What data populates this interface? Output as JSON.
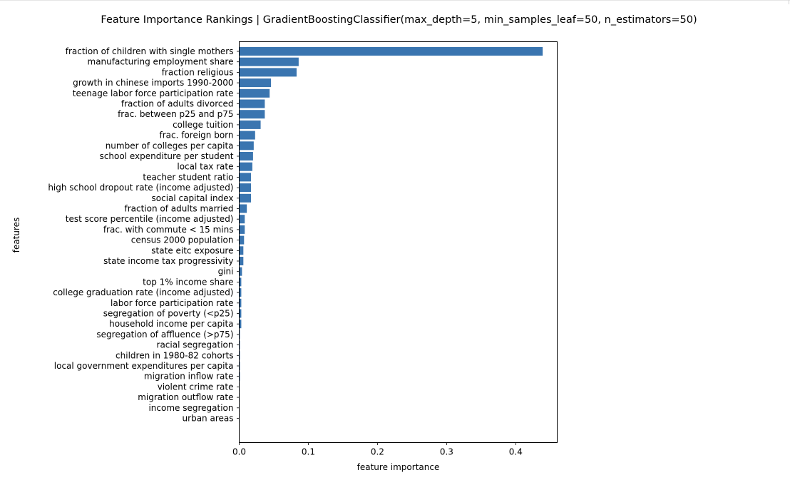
{
  "chart_data": {
    "type": "bar",
    "orientation": "horizontal",
    "title": "Feature Importance Rankings | GradientBoostingClassifier(max_depth=5, min_samples_leaf=50, n_estimators=50)",
    "xlabel": "feature importance",
    "ylabel": "features",
    "xlim": [
      0,
      0.46
    ],
    "xticks": [
      0.0,
      0.1,
      0.2,
      0.3,
      0.4
    ],
    "xtick_labels": [
      "0.0",
      "0.1",
      "0.2",
      "0.3",
      "0.4"
    ],
    "grid": false,
    "bar_color": "#3a75b0",
    "categories": [
      "fraction of children with single mothers",
      "manufacturing employment share",
      "fraction religious",
      "growth in chinese imports 1990-2000",
      "teenage labor force participation rate",
      "fraction of adults divorced",
      "frac. between p25 and p75",
      "college tuition",
      "frac. foreign born",
      "number of colleges per capita",
      "school expenditure per student",
      "local tax rate",
      "teacher student ratio",
      "high school dropout rate (income adjusted)",
      "social capital index",
      "fraction of adults married",
      "test score percentile (income adjusted)",
      "frac. with commute < 15 mins",
      "census 2000 population",
      "state eitc exposure",
      "state income tax progressivity",
      "gini",
      "top 1% income share",
      "college graduation rate (income adjusted)",
      "labor force participation rate",
      "segregation of poverty (<p25)",
      "household income per capita",
      "segregation of affluence (>p75)",
      "racial segregation",
      "children in 1980-82 cohorts",
      "local government expenditures per capita",
      "migration inflow rate",
      "violent crime rate",
      "migration outflow rate",
      "income segregation",
      "urban areas"
    ],
    "values": [
      0.439,
      0.086,
      0.083,
      0.046,
      0.044,
      0.037,
      0.037,
      0.031,
      0.023,
      0.021,
      0.02,
      0.019,
      0.017,
      0.017,
      0.017,
      0.011,
      0.008,
      0.008,
      0.007,
      0.006,
      0.006,
      0.004,
      0.003,
      0.003,
      0.003,
      0.003,
      0.003,
      0.001,
      0.001,
      0.001,
      0.001,
      0.001,
      0.0005,
      0.0005,
      0.0004,
      0.0003
    ]
  }
}
